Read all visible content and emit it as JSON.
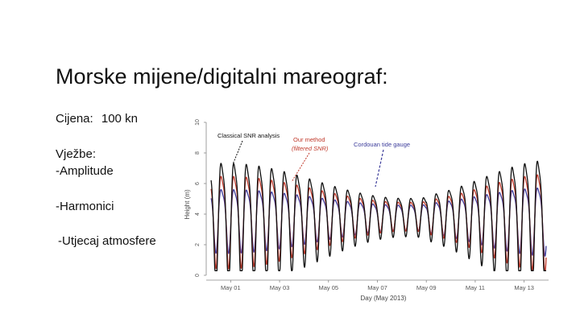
{
  "slide": {
    "title": "Morske mijene/digitalni mareograf:",
    "price_label": "Cijena:",
    "price_value": "100 kn",
    "exercises_label": "Vježbe:",
    "item_amplitude": "-Amplitude",
    "item_harmonics": "-Harmonici",
    "item_atmosphere": "-Utjecaj atmosfere"
  },
  "chart_data": {
    "type": "line",
    "title": "",
    "xlabel": "Day (May 2013)",
    "ylabel": "Height (m)",
    "ylim": [
      0,
      10
    ],
    "xlim": [
      0,
      14
    ],
    "yticks": [
      "0",
      "2",
      "4",
      "6",
      "8",
      "10"
    ],
    "xticks": [
      {
        "x": 1,
        "label": "May 01"
      },
      {
        "x": 3,
        "label": "May 03"
      },
      {
        "x": 5,
        "label": "May 05"
      },
      {
        "x": 7,
        "label": "May 07"
      },
      {
        "x": 9,
        "label": "May 09"
      },
      {
        "x": 11,
        "label": "May 11"
      },
      {
        "x": 13,
        "label": "May 13"
      }
    ],
    "grid": false,
    "annotations": [
      {
        "text": "Classical SNR analysis",
        "color": "#111111"
      },
      {
        "text": "Our method",
        "text2": "(filtered SNR)",
        "color": "#c0392b"
      },
      {
        "text": "Cordouan tide gauge",
        "color": "#3b3b9a"
      }
    ],
    "series": [
      {
        "color": "#111111",
        "mean": 4.0,
        "amp_spring": 3.9,
        "amp_neap": 1.2
      },
      {
        "color": "#c0392b",
        "mean": 4.0,
        "amp_spring": 2.9,
        "amp_neap": 0.9
      },
      {
        "color": "#3b3b9a",
        "mean": 3.9,
        "amp_spring": 2.0,
        "amp_neap": 0.8
      }
    ],
    "period_days": 0.5175,
    "spring_day": 0.8,
    "springneap_days": 14.77
  }
}
